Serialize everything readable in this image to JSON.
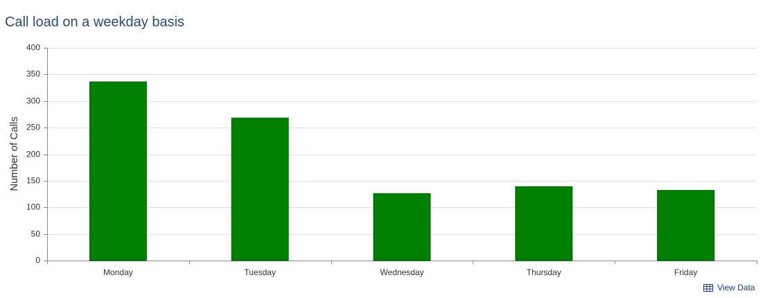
{
  "chart_data": {
    "type": "bar",
    "title": "Call load on a weekday basis",
    "y_label": "Number of Calls",
    "categories": [
      "Monday",
      "Tuesday",
      "Wednesday",
      "Thursday",
      "Friday"
    ],
    "values": [
      336,
      268,
      126,
      139,
      132
    ],
    "color": "#008000",
    "ylim": [
      0,
      400
    ],
    "yticks": [
      0,
      50,
      100,
      150,
      200,
      250,
      300,
      350,
      400
    ],
    "grid": true
  },
  "link": {
    "label": "View Data"
  }
}
